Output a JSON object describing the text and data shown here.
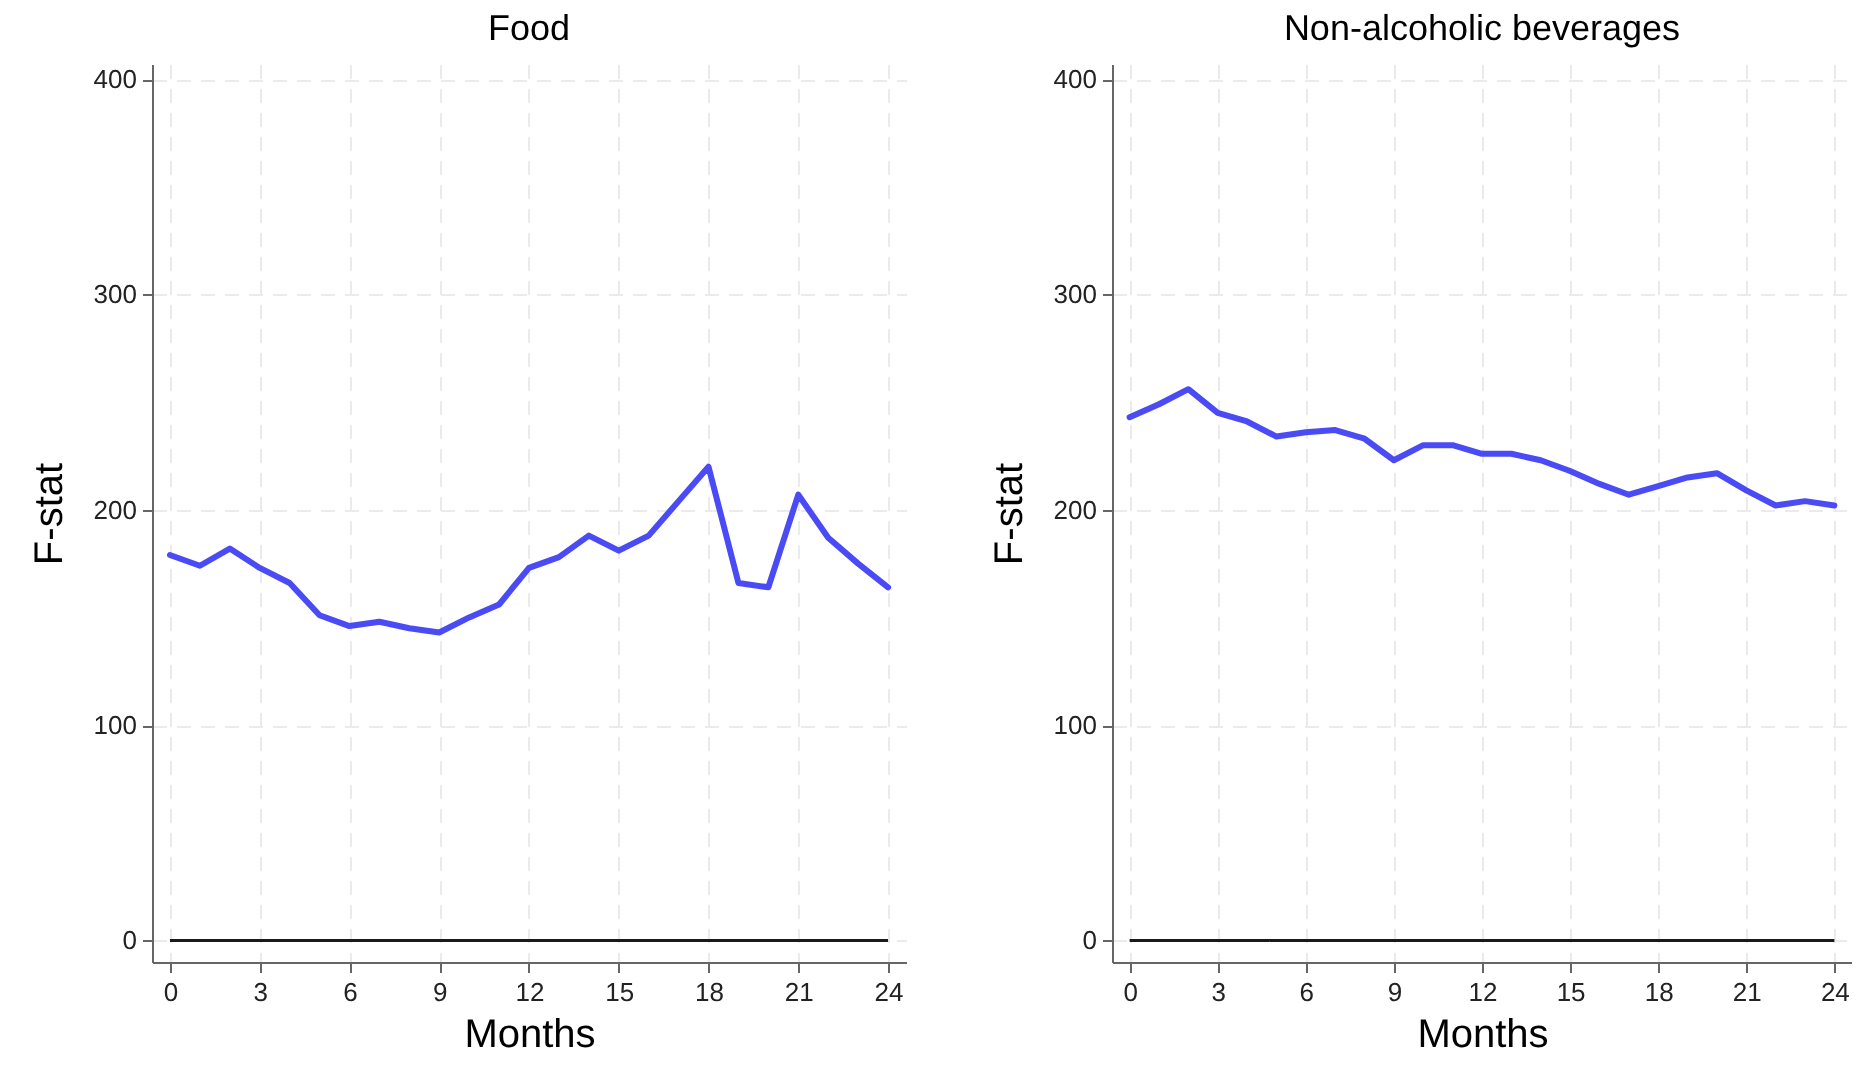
{
  "chart_data": [
    {
      "type": "line",
      "title": "Food",
      "xlabel": "Months",
      "ylabel": "F-stat",
      "x": [
        0,
        1,
        2,
        3,
        4,
        5,
        6,
        7,
        8,
        9,
        10,
        11,
        12,
        13,
        14,
        15,
        16,
        17,
        18,
        19,
        20,
        21,
        22,
        23,
        24
      ],
      "series": [
        {
          "color": "#4b4bf5",
          "values": [
            179,
            174,
            182,
            173,
            166,
            151,
            146,
            148,
            145,
            143,
            150,
            156,
            173,
            178,
            188,
            181,
            188,
            204,
            220,
            166,
            164,
            207,
            187,
            175,
            164
          ]
        }
      ],
      "xlim": [
        -0.6,
        24.6
      ],
      "ylim": [
        -10,
        407
      ],
      "xticks": [
        0,
        3,
        6,
        9,
        12,
        15,
        18,
        21,
        24
      ],
      "yticks": [
        0,
        100,
        200,
        300,
        400
      ],
      "grid": true,
      "legend": false,
      "ref_lines": [
        {
          "axis": "y",
          "value": 0,
          "color": "#1a1a1a"
        }
      ]
    },
    {
      "type": "line",
      "title": "Non-alcoholic beverages",
      "xlabel": "Months",
      "ylabel": "F-stat",
      "x": [
        0,
        1,
        2,
        3,
        4,
        5,
        6,
        7,
        8,
        9,
        10,
        11,
        12,
        13,
        14,
        15,
        16,
        17,
        18,
        19,
        20,
        21,
        22,
        23,
        24
      ],
      "series": [
        {
          "color": "#4b4bf5",
          "values": [
            243,
            249,
            256,
            245,
            241,
            234,
            236,
            237,
            233,
            223,
            230,
            230,
            226,
            226,
            223,
            218,
            212,
            207,
            211,
            215,
            217,
            209,
            202,
            204,
            202
          ]
        }
      ],
      "xlim": [
        -0.6,
        24.6
      ],
      "ylim": [
        -10,
        407
      ],
      "xticks": [
        0,
        3,
        6,
        9,
        12,
        15,
        18,
        21,
        24
      ],
      "yticks": [
        0,
        100,
        200,
        300,
        400
      ],
      "grid": true,
      "legend": false,
      "ref_lines": [
        {
          "axis": "y",
          "value": 0,
          "color": "#1a1a1a"
        }
      ]
    }
  ]
}
